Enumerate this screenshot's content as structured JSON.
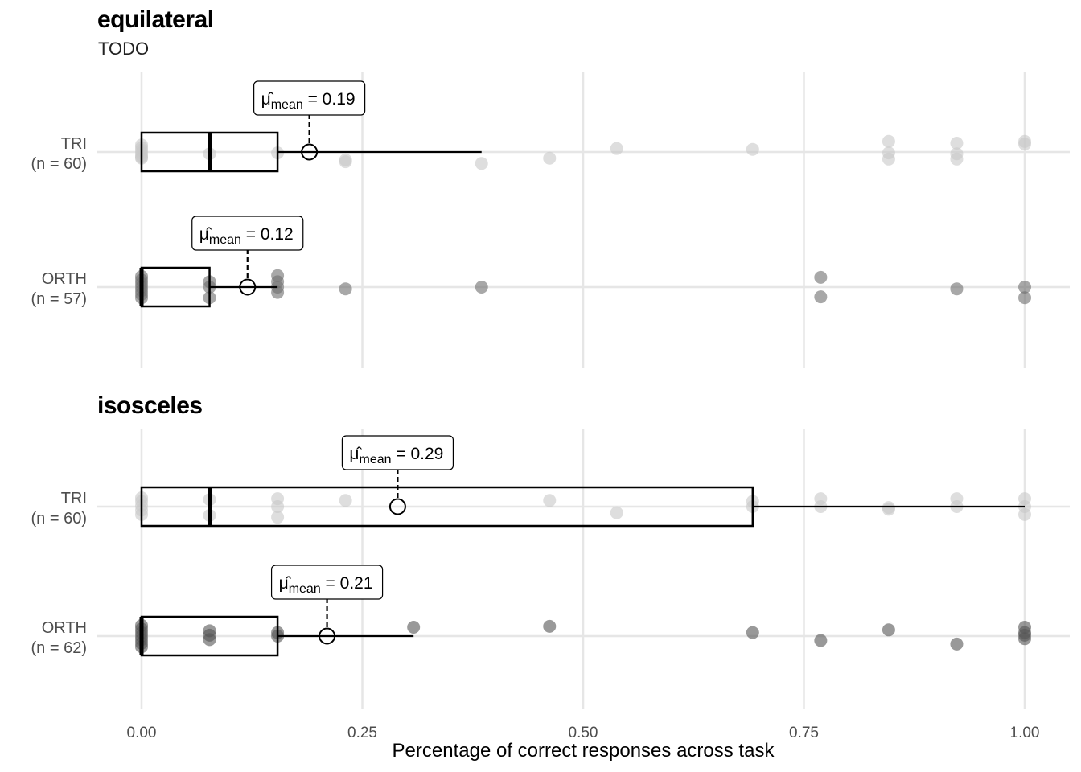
{
  "chart_data": [
    {
      "type": "box",
      "title": "equilateral",
      "subtitle": "TODO",
      "xlabel": "Percentage of correct responses across task",
      "xlim": [
        0,
        1
      ],
      "xticks": [
        "0.00",
        "0.25",
        "0.50",
        "0.75",
        "1.00"
      ],
      "groups": [
        {
          "label_1": "TRI",
          "label_2": "(n = 60)",
          "q1": 0.0,
          "median": 0.077,
          "q3": 0.154,
          "whisker_low": 0.0,
          "whisker_high": 0.385,
          "mean": 0.19,
          "mean_text": "0.19",
          "points": [
            [
              0,
              0.05
            ],
            [
              0,
              0.3
            ],
            [
              0,
              -0.1
            ],
            [
              0,
              0.35
            ],
            [
              0,
              -0.4
            ],
            [
              0,
              0.2
            ],
            [
              0,
              -0.25
            ],
            [
              0.077,
              0.1
            ],
            [
              0.154,
              0.05
            ],
            [
              0.231,
              0.55
            ],
            [
              0.231,
              0.45
            ],
            [
              0.385,
              0.65
            ],
            [
              0.462,
              0.35
            ],
            [
              0.538,
              -0.2
            ],
            [
              0.692,
              -0.15
            ],
            [
              0.846,
              0.4
            ],
            [
              0.846,
              0.05
            ],
            [
              0.846,
              -0.6
            ],
            [
              0.923,
              0.4
            ],
            [
              0.923,
              0.1
            ],
            [
              0.923,
              -0.5
            ],
            [
              1.0,
              -0.45
            ],
            [
              1.0,
              -0.6
            ]
          ],
          "shade": "#c8c8c8"
        },
        {
          "label_1": "ORTH",
          "label_2": "(n = 57)",
          "q1": 0.0,
          "median": 0.0,
          "q3": 0.077,
          "whisker_low": 0.0,
          "whisker_high": 0.154,
          "mean": 0.12,
          "mean_text": "0.12",
          "points": [
            [
              0,
              0.6
            ],
            [
              0,
              0.4
            ],
            [
              0,
              0.2
            ],
            [
              0,
              0.0
            ],
            [
              0,
              -0.2
            ],
            [
              0,
              -0.4
            ],
            [
              0,
              -0.6
            ],
            [
              0.077,
              0.6
            ],
            [
              0.077,
              0.0
            ],
            [
              0.077,
              -0.3
            ],
            [
              0.154,
              0.3
            ],
            [
              0.154,
              0.0
            ],
            [
              0.154,
              -0.3
            ],
            [
              0.154,
              -0.65
            ],
            [
              0.231,
              0.1
            ],
            [
              0.385,
              0.0
            ],
            [
              0.769,
              0.55
            ],
            [
              0.769,
              -0.55
            ],
            [
              0.923,
              0.1
            ],
            [
              1.0,
              0.6
            ],
            [
              1.0,
              0.0
            ]
          ],
          "shade": "#6e6e6e"
        }
      ]
    },
    {
      "type": "box",
      "title": "isosceles",
      "xlabel": "Percentage of correct responses across task",
      "xlim": [
        0,
        1
      ],
      "xticks": [
        "0.00",
        "0.25",
        "0.50",
        "0.75",
        "1.00"
      ],
      "groups": [
        {
          "label_1": "TRI",
          "label_2": "(n = 60)",
          "q1": 0.0,
          "median": 0.077,
          "q3": 0.692,
          "whisker_low": 0.0,
          "whisker_high": 1.0,
          "mean": 0.29,
          "mean_text": "0.29",
          "points": [
            [
              0,
              0.45
            ],
            [
              0,
              0.2
            ],
            [
              0,
              -0.05
            ],
            [
              0,
              -0.3
            ],
            [
              0,
              -0.5
            ],
            [
              0.077,
              0.5
            ],
            [
              0.077,
              -0.4
            ],
            [
              0.154,
              0.6
            ],
            [
              0.154,
              0.0
            ],
            [
              0.154,
              -0.45
            ],
            [
              0.231,
              -0.35
            ],
            [
              0.462,
              -0.35
            ],
            [
              0.538,
              0.35
            ],
            [
              0.692,
              0.0
            ],
            [
              0.692,
              -0.3
            ],
            [
              0.769,
              0.0
            ],
            [
              0.769,
              -0.45
            ],
            [
              0.846,
              0.15
            ],
            [
              0.846,
              0.05
            ],
            [
              0.923,
              0.0
            ],
            [
              0.923,
              -0.45
            ],
            [
              1.0,
              0.45
            ],
            [
              1.0,
              0.0
            ],
            [
              1.0,
              -0.45
            ]
          ],
          "shade": "#c8c8c8"
        },
        {
          "label_1": "ORTH",
          "label_2": "(n = 62)",
          "q1": 0.0,
          "median": 0.0,
          "q3": 0.154,
          "whisker_low": 0.0,
          "whisker_high": 0.308,
          "mean": 0.21,
          "mean_text": "0.21",
          "points": [
            [
              0,
              0.6
            ],
            [
              0,
              0.4
            ],
            [
              0,
              0.2
            ],
            [
              0,
              0.0
            ],
            [
              0,
              -0.2
            ],
            [
              0,
              -0.4
            ],
            [
              0,
              -0.6
            ],
            [
              0.077,
              0.2
            ],
            [
              0.077,
              -0.05
            ],
            [
              0.077,
              -0.3
            ],
            [
              0.154,
              0.0
            ],
            [
              0.154,
              -0.2
            ],
            [
              0.308,
              -0.5
            ],
            [
              0.462,
              -0.55
            ],
            [
              0.692,
              -0.2
            ],
            [
              0.769,
              0.25
            ],
            [
              0.846,
              -0.35
            ],
            [
              0.923,
              0.45
            ],
            [
              1.0,
              0.15
            ],
            [
              1.0,
              -0.05
            ],
            [
              1.0,
              -0.2
            ],
            [
              1.0,
              -0.5
            ]
          ],
          "shade": "#555555"
        }
      ]
    }
  ]
}
